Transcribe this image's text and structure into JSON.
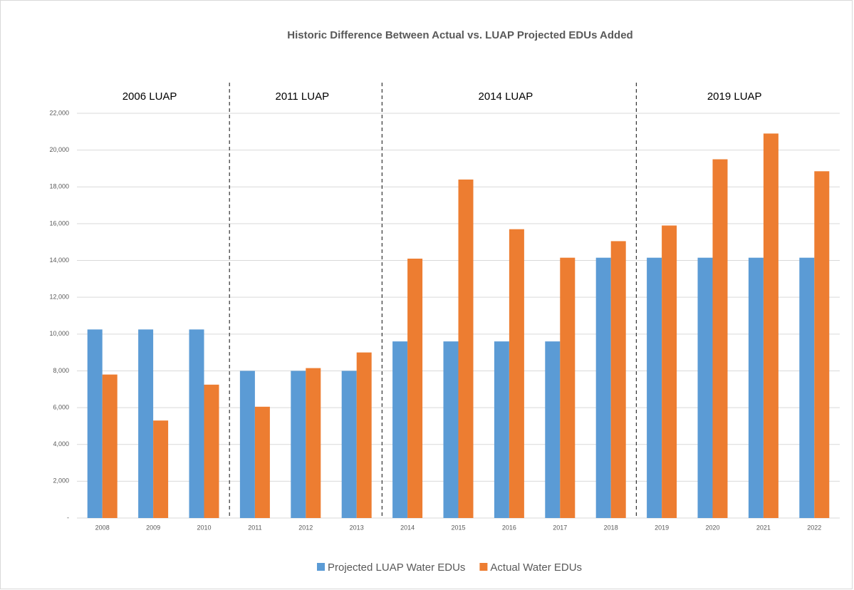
{
  "chart_data": {
    "type": "bar",
    "title": "Historic Difference Between Actual vs. LUAP Projected EDUs Added",
    "categories": [
      "2008",
      "2009",
      "2010",
      "2011",
      "2012",
      "2013",
      "2014",
      "2015",
      "2016",
      "2017",
      "2018",
      "2019",
      "2020",
      "2021",
      "2022"
    ],
    "series": [
      {
        "name": "Projected LUAP Water EDUs",
        "color": "#5b9bd5",
        "values": [
          10250,
          10250,
          10250,
          8000,
          8000,
          8000,
          9600,
          9600,
          9600,
          9600,
          14150,
          14150,
          14150,
          14150,
          14150
        ]
      },
      {
        "name": "Actual Water EDUs",
        "color": "#ed7d31",
        "values": [
          7800,
          5300,
          7250,
          6050,
          8150,
          9000,
          14100,
          18400,
          15700,
          14150,
          15050,
          15900,
          19500,
          20900,
          18850
        ]
      }
    ],
    "ylim": [
      0,
      22000
    ],
    "yticks": [
      {
        "value": 0,
        "label": "-"
      },
      {
        "value": 2000,
        "label": "2,000"
      },
      {
        "value": 4000,
        "label": "4,000"
      },
      {
        "value": 6000,
        "label": "6,000"
      },
      {
        "value": 8000,
        "label": "8,000"
      },
      {
        "value": 10000,
        "label": "10,000"
      },
      {
        "value": 12000,
        "label": "12,000"
      },
      {
        "value": 14000,
        "label": "14,000"
      },
      {
        "value": 16000,
        "label": "16,000"
      },
      {
        "value": 18000,
        "label": "18,000"
      },
      {
        "value": 20000,
        "label": "20,000"
      },
      {
        "value": 22000,
        "label": "22,000"
      }
    ],
    "grid": true,
    "legend": "bottom",
    "annotations": [
      {
        "text": "2006 LUAP",
        "from": "2008",
        "to": "2010"
      },
      {
        "text": "2011 LUAP",
        "from": "2011",
        "to": "2013"
      },
      {
        "text": "2014 LUAP",
        "from": "2014",
        "to": "2018"
      },
      {
        "text": "2019 LUAP",
        "from": "2019",
        "to": "2022"
      }
    ]
  }
}
